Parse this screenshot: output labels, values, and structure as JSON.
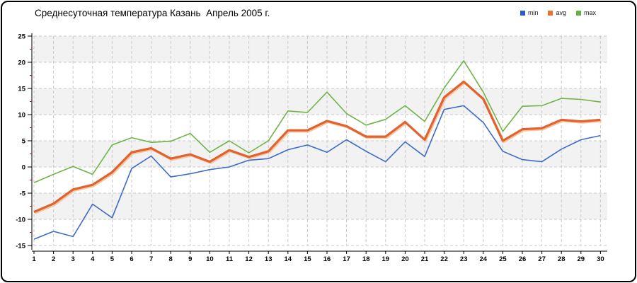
{
  "frame": {
    "title": "Среднесуточная температура Казань  Апрель 2005 г."
  },
  "legend": {
    "position": "top-right",
    "items": [
      {
        "label": "min",
        "color": "#2e5bc9"
      },
      {
        "label": "avg",
        "color": "#e8732e"
      },
      {
        "label": "max",
        "color": "#64b23c"
      }
    ]
  },
  "chart_data": {
    "type": "line",
    "title": "Среднесуточная температура Казань  Апрель 2005 г.",
    "xlabel": "",
    "ylabel": "",
    "x": [
      1,
      2,
      3,
      4,
      5,
      6,
      7,
      8,
      9,
      10,
      11,
      12,
      13,
      14,
      15,
      16,
      17,
      18,
      19,
      20,
      21,
      22,
      23,
      24,
      25,
      26,
      27,
      28,
      29,
      30
    ],
    "series": [
      {
        "name": "min",
        "color": "#3c6bc9",
        "width": 1.6,
        "values": [
          -13.8,
          -12.3,
          -13.3,
          -7.1,
          -9.7,
          -0.3,
          2.1,
          -1.9,
          -1.3,
          -0.5,
          0,
          1.3,
          1.6,
          3.3,
          4.2,
          2.8,
          5.2,
          3,
          1,
          4.8,
          2,
          11,
          11.7,
          8.5,
          3,
          1.4,
          1,
          3.4,
          5.2,
          6
        ]
      },
      {
        "name": "avg",
        "color": "#e0622f",
        "width": 3.2,
        "shadow_color": "#f5c6a0",
        "values": [
          -8.6,
          -7,
          -4.3,
          -3.4,
          -1,
          2.8,
          3.6,
          1.6,
          2.4,
          1,
          3.2,
          1.9,
          3,
          7,
          7,
          8.8,
          7.8,
          5.8,
          5.8,
          8.6,
          5.2,
          13.3,
          16.3,
          13,
          5,
          7.2,
          7.4,
          9,
          8.7,
          9
        ]
      },
      {
        "name": "max",
        "color": "#6eb446",
        "width": 1.6,
        "values": [
          -3,
          -1.4,
          0.1,
          -1.4,
          4.2,
          5.6,
          4.7,
          4.9,
          6.4,
          2.8,
          5,
          2.7,
          5,
          10.7,
          10.4,
          14.3,
          10.2,
          8,
          9.1,
          11.7,
          8.7,
          15.1,
          20.3,
          14.3,
          6.8,
          11.6,
          11.7,
          13.1,
          12.9,
          12.4
        ]
      }
    ],
    "ylim": [
      -15,
      25
    ],
    "ytick_step": 5,
    "ytick_labels": [
      "25",
      "20",
      "15",
      "10",
      "5",
      "0",
      "-5",
      "-10",
      "-15"
    ],
    "yminor_step": 2.5,
    "yminor_color": "#d40000",
    "grid": "dashed",
    "grid_color": "#c9c9c9",
    "band_colors": [
      "#f2f2f2",
      "#ffffff"
    ],
    "axis_color": "#000000",
    "legend_position": "top-right"
  }
}
